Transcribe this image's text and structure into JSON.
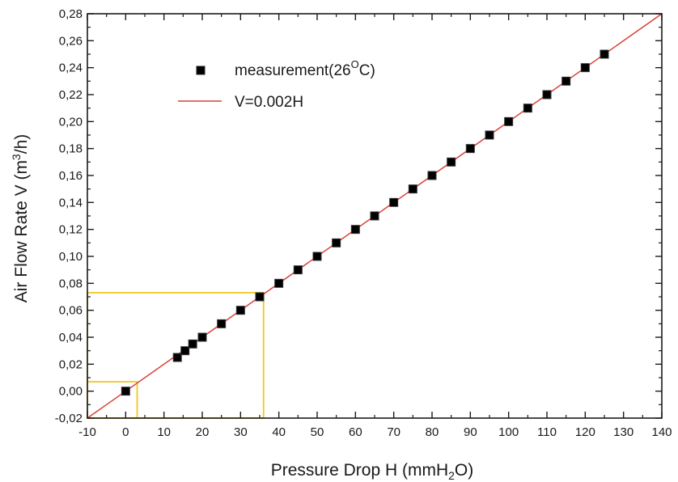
{
  "chart_data": {
    "type": "scatter",
    "xlabel": {
      "main": "Pressure Drop H (mmH",
      "sub": "2",
      "tail": "O)"
    },
    "ylabel": {
      "main": "Air Flow Rate V (m",
      "sup": "3",
      "tail": "/h)"
    },
    "xlim": [
      -10,
      140
    ],
    "ylim": [
      -0.02,
      0.28
    ],
    "x_ticks": [
      "-10",
      "0",
      "10",
      "20",
      "30",
      "40",
      "50",
      "60",
      "70",
      "80",
      "90",
      "100",
      "110",
      "120",
      "130",
      "140"
    ],
    "y_ticks": [
      "-0,02",
      "0,00",
      "0,02",
      "0,04",
      "0,06",
      "0,08",
      "0,10",
      "0,12",
      "0,14",
      "0,16",
      "0,18",
      "0,20",
      "0,22",
      "0,24",
      "0,26",
      "0,28"
    ],
    "grid": false,
    "legend_position": "top-left",
    "series": [
      {
        "kind": "points",
        "name": {
          "main": "measurement(26",
          "sup": "O",
          "tail": "C)"
        },
        "marker": "square",
        "color": "#000000",
        "x": [
          0,
          13.5,
          15.5,
          17.5,
          20,
          25,
          30,
          35,
          40,
          45,
          50,
          55,
          60,
          65,
          70,
          75,
          80,
          85,
          90,
          95,
          100,
          105,
          110,
          115,
          120,
          125
        ],
        "y": [
          0.0,
          0.025,
          0.03,
          0.035,
          0.04,
          0.05,
          0.06,
          0.07,
          0.08,
          0.09,
          0.1,
          0.11,
          0.12,
          0.13,
          0.14,
          0.15,
          0.16,
          0.17,
          0.18,
          0.19,
          0.2,
          0.21,
          0.22,
          0.23,
          0.24,
          0.25
        ]
      },
      {
        "kind": "line",
        "name": "V=0.002H",
        "color": "#d9413a",
        "x": [
          -10,
          140
        ],
        "y": [
          -0.02,
          0.28
        ]
      }
    ],
    "highlight_boxes": {
      "color": "#f2c81f",
      "boxes": [
        {
          "x": [
            -10,
            3
          ],
          "y": [
            -0.02,
            0.007
          ]
        },
        {
          "x": [
            -10,
            36
          ],
          "y": [
            -0.02,
            0.073
          ]
        }
      ]
    }
  }
}
